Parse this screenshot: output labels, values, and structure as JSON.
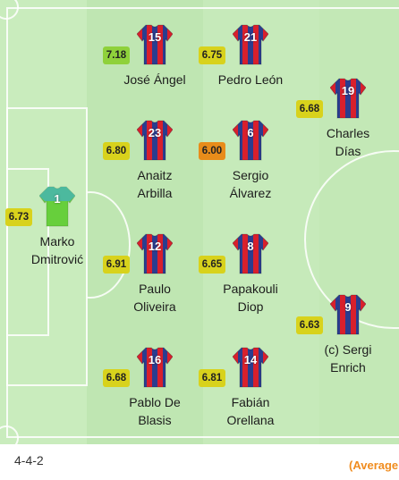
{
  "formation": "4-4-2",
  "legend_text": "(Average",
  "colors": {
    "kit_red": "#d8202c",
    "kit_blue": "#2a3d8f",
    "keeper_green": "#67cf3c",
    "rating_green": "#8fd13b",
    "rating_yellow": "#d8d21c",
    "rating_orange": "#e88c1a"
  },
  "players": [
    {
      "id": "jose-angel",
      "number": "15",
      "rating": "7.18",
      "rating_color": "#8fd13b",
      "name_lines": [
        "José Ángel"
      ],
      "kit": "outfield"
    },
    {
      "id": "pedro-leon",
      "number": "21",
      "rating": "6.75",
      "rating_color": "#d8d21c",
      "name_lines": [
        "Pedro León"
      ],
      "kit": "outfield"
    },
    {
      "id": "charles-dias",
      "number": "19",
      "rating": "6.68",
      "rating_color": "#d8d21c",
      "name_lines": [
        "Charles",
        "Días"
      ],
      "kit": "outfield"
    },
    {
      "id": "anaitz-arbilla",
      "number": "23",
      "rating": "6.80",
      "rating_color": "#d8d21c",
      "name_lines": [
        "Anaitz",
        "Arbilla"
      ],
      "kit": "outfield"
    },
    {
      "id": "sergio-alvarez",
      "number": "6",
      "rating": "6.00",
      "rating_color": "#e88c1a",
      "name_lines": [
        "Sergio",
        "Álvarez"
      ],
      "kit": "outfield"
    },
    {
      "id": "marko-dmitrovic",
      "number": "1",
      "rating": "6.73",
      "rating_color": "#d8d21c",
      "name_lines": [
        "Marko",
        "Dmitrović"
      ],
      "kit": "keeper"
    },
    {
      "id": "paulo-oliveira",
      "number": "12",
      "rating": "6.91",
      "rating_color": "#d8d21c",
      "name_lines": [
        "Paulo",
        "Oliveira"
      ],
      "kit": "outfield"
    },
    {
      "id": "papakouli-diop",
      "number": "8",
      "rating": "6.65",
      "rating_color": "#d8d21c",
      "name_lines": [
        "Papakouli",
        "Diop"
      ],
      "kit": "outfield"
    },
    {
      "id": "sergi-enrich",
      "number": "9",
      "rating": "6.63",
      "rating_color": "#d8d21c",
      "name_lines": [
        "(c) Sergi",
        "Enrich"
      ],
      "kit": "outfield"
    },
    {
      "id": "pablo-de-blasis",
      "number": "16",
      "rating": "6.68",
      "rating_color": "#d8d21c",
      "name_lines": [
        "Pablo De",
        "Blasis"
      ],
      "kit": "outfield"
    },
    {
      "id": "fabian-orellana",
      "number": "14",
      "rating": "6.81",
      "rating_color": "#d8d21c",
      "name_lines": [
        "Fabián",
        "Orellana"
      ],
      "kit": "outfield"
    }
  ]
}
